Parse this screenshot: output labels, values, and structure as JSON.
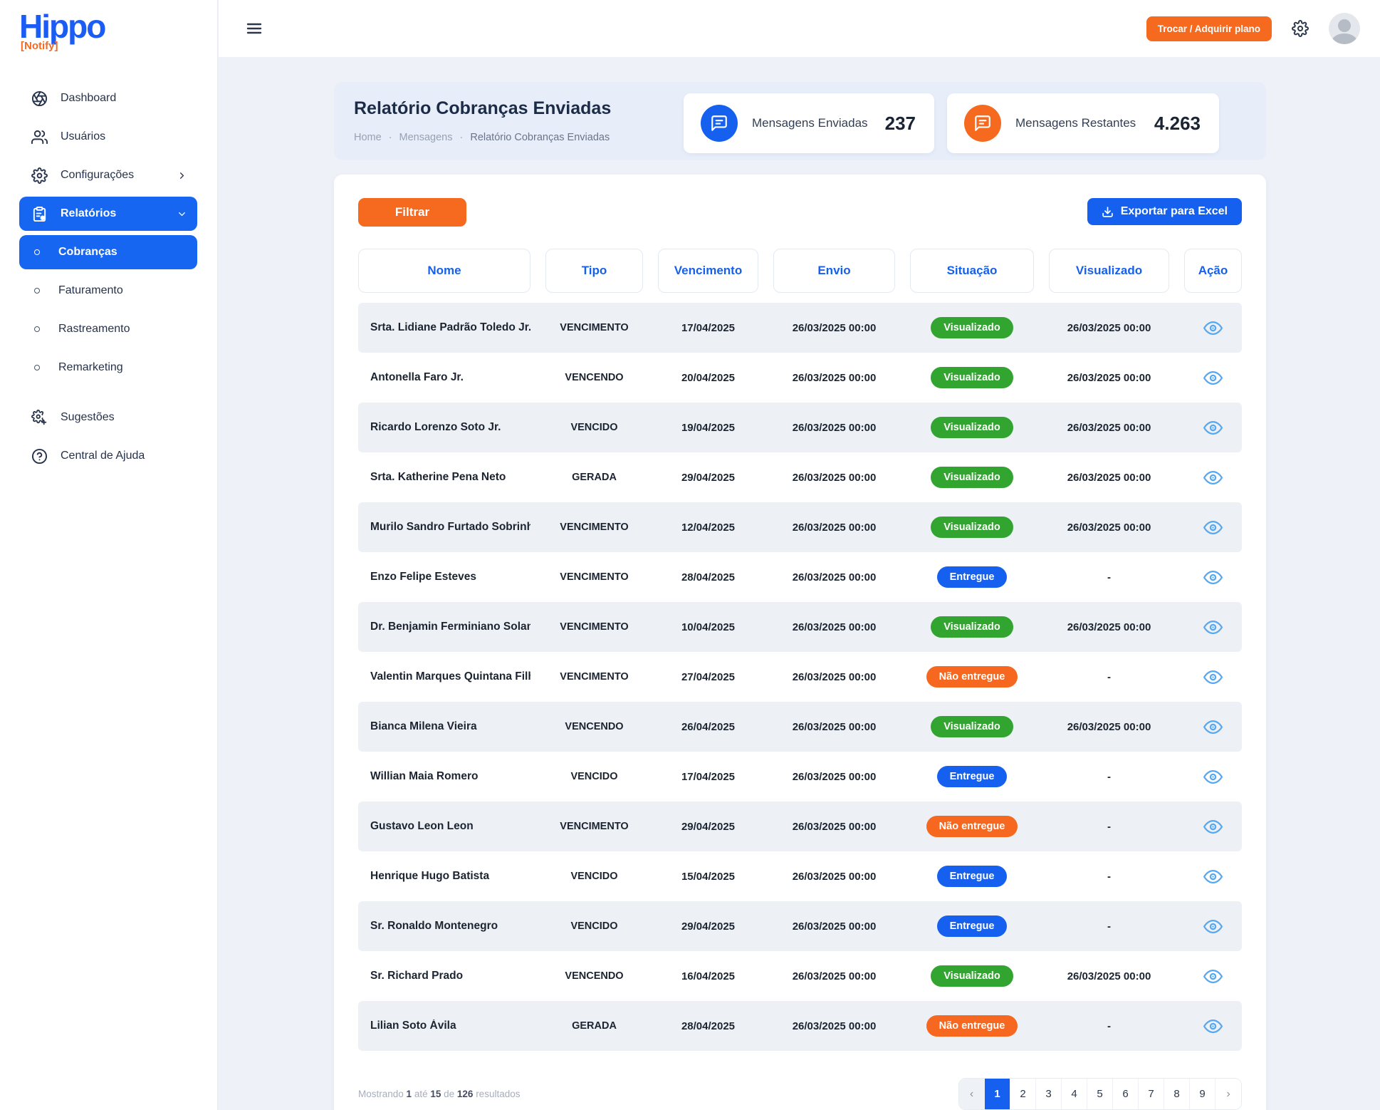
{
  "app": {
    "logo_text": "Hippo",
    "logo_sub": "[Notify]"
  },
  "colors": {
    "primary_blue": "#1766f2",
    "accent_orange": "#f66a1f",
    "badge_green": "#31a52f",
    "badge_blue": "#1560ef",
    "badge_orange": "#f66820",
    "eye_blue": "#55a9f3"
  },
  "sidebar": {
    "items": [
      {
        "id": "dashboard",
        "label": "Dashboard",
        "icon": "dashboard-icon",
        "type": "top"
      },
      {
        "id": "usuarios",
        "label": "Usuários",
        "icon": "users-icon",
        "type": "top"
      },
      {
        "id": "configuracoes",
        "label": "Configurações",
        "icon": "gear-icon",
        "type": "top",
        "chevron": "right"
      },
      {
        "id": "relatorios",
        "label": "Relatórios",
        "icon": "report-icon",
        "type": "top",
        "chevron": "down",
        "active": true
      },
      {
        "id": "cobrancas",
        "label": "Cobranças",
        "type": "sub",
        "active": true
      },
      {
        "id": "faturamento",
        "label": "Faturamento",
        "type": "sub"
      },
      {
        "id": "rastreamento",
        "label": "Rastreamento",
        "type": "sub"
      },
      {
        "id": "remarketing",
        "label": "Remarketing",
        "type": "sub"
      },
      {
        "id": "sugestoes",
        "label": "Sugestões",
        "icon": "suggestions-icon",
        "type": "top",
        "gap": true
      },
      {
        "id": "central-ajuda",
        "label": "Central de Ajuda",
        "icon": "help-icon",
        "type": "top"
      }
    ]
  },
  "topbar": {
    "plan_button": "Trocar / Adquirir plano"
  },
  "header": {
    "title": "Relatório Cobranças Enviadas",
    "breadcrumb": [
      "Home",
      "Mensagens",
      "Relatório Cobranças Enviadas"
    ]
  },
  "stats": [
    {
      "label": "Mensagens Enviadas",
      "value": "237",
      "color": "#1560ef",
      "icon": "chat-icon"
    },
    {
      "label": "Mensagens Restantes",
      "value": "4.263",
      "color": "#f66a1f",
      "icon": "chat-icon"
    }
  ],
  "toolbar": {
    "filter_label": "Filtrar",
    "export_label": "Exportar para Excel"
  },
  "table": {
    "columns": [
      "Nome",
      "Tipo",
      "Vencimento",
      "Envio",
      "Situação",
      "Visualizado",
      "Ação"
    ],
    "rows": [
      {
        "name": "Srta. Lidiane Padrão Toledo Jr...",
        "tipo": "VENCIMENTO",
        "vencimento": "17/04/2025",
        "envio": "26/03/2025 00:00",
        "situacao": "Visualizado",
        "situacao_type": "visualizado",
        "visualizado": "26/03/2025 00:00"
      },
      {
        "name": "Antonella Faro Jr.",
        "tipo": "VENCENDO",
        "vencimento": "20/04/2025",
        "envio": "26/03/2025 00:00",
        "situacao": "Visualizado",
        "situacao_type": "visualizado",
        "visualizado": "26/03/2025 00:00"
      },
      {
        "name": "Ricardo Lorenzo Soto Jr.",
        "tipo": "VENCIDO",
        "vencimento": "19/04/2025",
        "envio": "26/03/2025 00:00",
        "situacao": "Visualizado",
        "situacao_type": "visualizado",
        "visualizado": "26/03/2025 00:00"
      },
      {
        "name": "Srta. Katherine Pena Neto",
        "tipo": "GERADA",
        "vencimento": "29/04/2025",
        "envio": "26/03/2025 00:00",
        "situacao": "Visualizado",
        "situacao_type": "visualizado",
        "visualizado": "26/03/2025 00:00"
      },
      {
        "name": "Murilo Sandro Furtado Sobrinho",
        "tipo": "VENCIMENTO",
        "vencimento": "12/04/2025",
        "envio": "26/03/2025 00:00",
        "situacao": "Visualizado",
        "situacao_type": "visualizado",
        "visualizado": "26/03/2025 00:00"
      },
      {
        "name": "Enzo Felipe Esteves",
        "tipo": "VENCIMENTO",
        "vencimento": "28/04/2025",
        "envio": "26/03/2025 00:00",
        "situacao": "Entregue",
        "situacao_type": "entregue",
        "visualizado": "-"
      },
      {
        "name": "Dr. Benjamin Ferminiano Solano",
        "tipo": "VENCIMENTO",
        "vencimento": "10/04/2025",
        "envio": "26/03/2025 00:00",
        "situacao": "Visualizado",
        "situacao_type": "visualizado",
        "visualizado": "26/03/2025 00:00"
      },
      {
        "name": "Valentin Marques Quintana Filh...",
        "tipo": "VENCIMENTO",
        "vencimento": "27/04/2025",
        "envio": "26/03/2025 00:00",
        "situacao": "Não entregue",
        "situacao_type": "nao_entregue",
        "visualizado": "-"
      },
      {
        "name": "Bianca Milena Vieira",
        "tipo": "VENCENDO",
        "vencimento": "26/04/2025",
        "envio": "26/03/2025 00:00",
        "situacao": "Visualizado",
        "situacao_type": "visualizado",
        "visualizado": "26/03/2025 00:00"
      },
      {
        "name": "Willian Maia Romero",
        "tipo": "VENCIDO",
        "vencimento": "17/04/2025",
        "envio": "26/03/2025 00:00",
        "situacao": "Entregue",
        "situacao_type": "entregue",
        "visualizado": "-"
      },
      {
        "name": "Gustavo Leon Leon",
        "tipo": "VENCIMENTO",
        "vencimento": "29/04/2025",
        "envio": "26/03/2025 00:00",
        "situacao": "Não entregue",
        "situacao_type": "nao_entregue",
        "visualizado": "-"
      },
      {
        "name": "Henrique Hugo Batista",
        "tipo": "VENCIDO",
        "vencimento": "15/04/2025",
        "envio": "26/03/2025 00:00",
        "situacao": "Entregue",
        "situacao_type": "entregue",
        "visualizado": "-"
      },
      {
        "name": "Sr. Ronaldo Montenegro",
        "tipo": "VENCIDO",
        "vencimento": "29/04/2025",
        "envio": "26/03/2025 00:00",
        "situacao": "Entregue",
        "situacao_type": "entregue",
        "visualizado": "-"
      },
      {
        "name": "Sr. Richard Prado",
        "tipo": "VENCENDO",
        "vencimento": "16/04/2025",
        "envio": "26/03/2025 00:00",
        "situacao": "Visualizado",
        "situacao_type": "visualizado",
        "visualizado": "26/03/2025 00:00"
      },
      {
        "name": "Lilian Soto Ávila",
        "tipo": "GERADA",
        "vencimento": "28/04/2025",
        "envio": "26/03/2025 00:00",
        "situacao": "Não entregue",
        "situacao_type": "nao_entregue",
        "visualizado": "-"
      }
    ]
  },
  "badge_colors": {
    "visualizado": "#31a52f",
    "entregue": "#1560ef",
    "nao_entregue": "#f66820"
  },
  "pagination": {
    "summary_parts": [
      {
        "t": "Mostrando "
      },
      {
        "t": "1",
        "b": true
      },
      {
        "t": " até "
      },
      {
        "t": "15",
        "b": true
      },
      {
        "t": " de "
      },
      {
        "t": "126",
        "b": true
      },
      {
        "t": " resultados"
      }
    ],
    "pages": [
      "1",
      "2",
      "3",
      "4",
      "5",
      "6",
      "7",
      "8",
      "9"
    ],
    "active_page": "1",
    "prev_symbol": "‹",
    "next_symbol": "›"
  }
}
